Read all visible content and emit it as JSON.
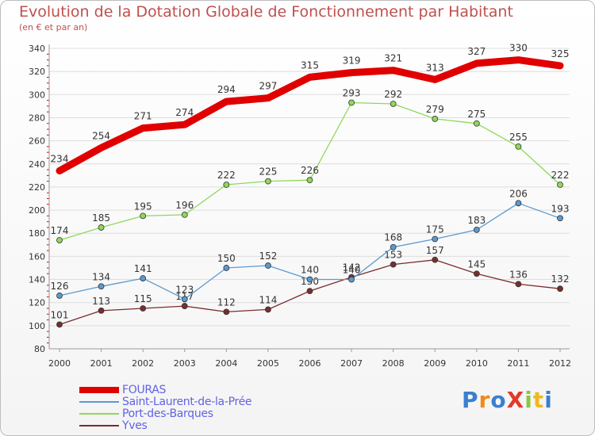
{
  "chart_data": {
    "type": "line",
    "title": "Evolution de la Dotation Globale de Fonctionnement par Habitant",
    "subtitle": "(en € et par an)",
    "xlabel": "",
    "ylabel": "",
    "ylim": [
      80,
      340
    ],
    "yticks": [
      80,
      100,
      120,
      140,
      160,
      180,
      200,
      220,
      240,
      260,
      280,
      300,
      320,
      340
    ],
    "grid": true,
    "legend_position": "bottom-left",
    "x": [
      "2000",
      "2001",
      "2002",
      "2003",
      "2004",
      "2005",
      "2006",
      "2007",
      "2008",
      "2009",
      "2010",
      "2011",
      "2012"
    ],
    "series": [
      {
        "name": "FOURAS",
        "color": "#e00000",
        "values": [
          234,
          254,
          271,
          274,
          294,
          297,
          315,
          319,
          321,
          313,
          327,
          330,
          325
        ]
      },
      {
        "name": "Saint-Laurent-de-la-Prée",
        "color": "#5a9ad1",
        "values": [
          126,
          134,
          141,
          123,
          150,
          152,
          140,
          140,
          168,
          175,
          183,
          206,
          193
        ]
      },
      {
        "name": "Port-des-Barques",
        "color": "#8fd85a",
        "values": [
          174,
          185,
          195,
          196,
          222,
          225,
          226,
          293,
          292,
          279,
          275,
          255,
          222
        ]
      },
      {
        "name": "Yves",
        "color": "#7a2d2d",
        "values": [
          101,
          113,
          115,
          117,
          112,
          114,
          130,
          142,
          153,
          157,
          145,
          136,
          132
        ]
      }
    ]
  },
  "logo": {
    "text": "ProXiti",
    "colors": [
      "#3a7fd0",
      "#f08a1c",
      "#3a7fd0",
      "#e03a2a",
      "#8ac640",
      "#f0b81c",
      "#3a7fd0"
    ]
  }
}
